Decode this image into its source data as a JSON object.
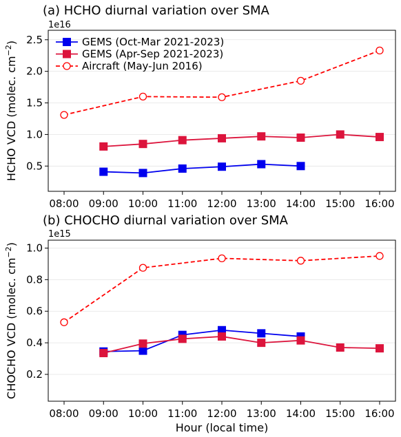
{
  "chart_data": [
    {
      "type": "line",
      "title": "(a) HCHO diurnal variation over SMA",
      "ylabel": "HCHO VCD (molec. cm$^{-2}$)",
      "ylabel_text": "HCHO VCD (molec. cm",
      "ylabel_sup": "−2",
      "ylabel_close": ")",
      "xlabel": "",
      "exponent": "1e16",
      "categories": [
        "08:00",
        "09:00",
        "10:00",
        "11:00",
        "12:00",
        "13:00",
        "14:00",
        "15:00",
        "16:00"
      ],
      "ylim": [
        0.1,
        2.65
      ],
      "yticks": [
        0.5,
        1.0,
        1.5,
        2.0,
        2.5
      ],
      "ytick_labels": [
        "0.5",
        "1.0",
        "1.5",
        "2.0",
        "2.5"
      ],
      "grid": "horizontal",
      "legend_position": "top-left",
      "series": [
        {
          "name": "GEMS (Oct-Mar 2021-2023)",
          "color": "#0000ee",
          "line": "solid",
          "marker": "square-filled",
          "x": [
            "09:00",
            "10:00",
            "11:00",
            "12:00",
            "13:00",
            "14:00"
          ],
          "values": [
            0.41,
            0.39,
            0.46,
            0.49,
            0.53,
            0.5
          ]
        },
        {
          "name": "GEMS (Apr-Sep 2021-2023)",
          "color": "#dc143c",
          "line": "solid",
          "marker": "square-filled",
          "x": [
            "09:00",
            "10:00",
            "11:00",
            "12:00",
            "13:00",
            "14:00",
            "15:00",
            "16:00"
          ],
          "values": [
            0.81,
            0.85,
            0.91,
            0.94,
            0.97,
            0.95,
            1.0,
            0.96
          ]
        },
        {
          "name": "Aircraft (May-Jun 2016)",
          "color": "#ff0000",
          "line": "dashed",
          "marker": "circle-open",
          "x": [
            "08:00",
            "10:00",
            "12:00",
            "14:00",
            "16:00"
          ],
          "values": [
            1.31,
            1.6,
            1.59,
            1.85,
            2.33
          ]
        }
      ]
    },
    {
      "type": "line",
      "title": "(b) CHOCHO diurnal variation over SMA",
      "ylabel": "CHOCHO VCD (molec. cm$^{-2}$)",
      "ylabel_text": "CHOCHO VCD (molec. cm",
      "ylabel_sup": "−2",
      "ylabel_close": ")",
      "xlabel": "Hour (local time)",
      "exponent": "1e15",
      "categories": [
        "08:00",
        "09:00",
        "10:00",
        "11:00",
        "12:00",
        "13:00",
        "14:00",
        "15:00",
        "16:00"
      ],
      "ylim": [
        0.03,
        1.05
      ],
      "yticks": [
        0.2,
        0.4,
        0.6,
        0.8,
        1.0
      ],
      "ytick_labels": [
        "0.2",
        "0.4",
        "0.6",
        "0.8",
        "1.0"
      ],
      "grid": "horizontal",
      "series": [
        {
          "name": "GEMS (Oct-Mar 2021-2023)",
          "color": "#0000ee",
          "line": "solid",
          "marker": "square-filled",
          "x": [
            "09:00",
            "10:00",
            "11:00",
            "12:00",
            "13:00",
            "14:00"
          ],
          "values": [
            0.345,
            0.35,
            0.45,
            0.48,
            0.46,
            0.44
          ]
        },
        {
          "name": "GEMS (Apr-Sep 2021-2023)",
          "color": "#dc143c",
          "line": "solid",
          "marker": "square-filled",
          "x": [
            "09:00",
            "10:00",
            "11:00",
            "12:00",
            "13:00",
            "14:00",
            "15:00",
            "16:00"
          ],
          "values": [
            0.335,
            0.395,
            0.425,
            0.44,
            0.4,
            0.415,
            0.37,
            0.365
          ]
        },
        {
          "name": "Aircraft (May-Jun 2016)",
          "color": "#ff0000",
          "line": "dashed",
          "marker": "circle-open",
          "x": [
            "08:00",
            "10:00",
            "12:00",
            "14:00",
            "16:00"
          ],
          "values": [
            0.53,
            0.875,
            0.935,
            0.92,
            0.95
          ]
        }
      ]
    }
  ]
}
